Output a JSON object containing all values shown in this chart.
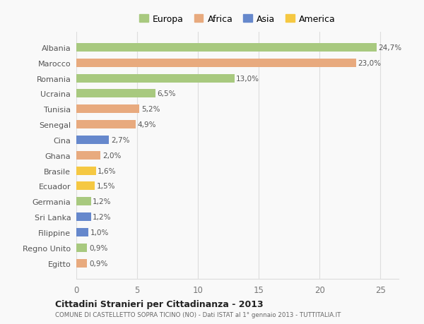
{
  "countries": [
    "Albania",
    "Marocco",
    "Romania",
    "Ucraina",
    "Tunisia",
    "Senegal",
    "Cina",
    "Ghana",
    "Brasile",
    "Ecuador",
    "Germania",
    "Sri Lanka",
    "Filippine",
    "Regno Unito",
    "Egitto"
  ],
  "values": [
    24.7,
    23.0,
    13.0,
    6.5,
    5.2,
    4.9,
    2.7,
    2.0,
    1.6,
    1.5,
    1.2,
    1.2,
    1.0,
    0.9,
    0.9
  ],
  "labels": [
    "24,7%",
    "23,0%",
    "13,0%",
    "6,5%",
    "5,2%",
    "4,9%",
    "2,7%",
    "2,0%",
    "1,6%",
    "1,5%",
    "1,2%",
    "1,2%",
    "1,0%",
    "0,9%",
    "0,9%"
  ],
  "continents": [
    "Europa",
    "Africa",
    "Europa",
    "Europa",
    "Africa",
    "Africa",
    "Asia",
    "Africa",
    "America",
    "America",
    "Europa",
    "Asia",
    "Asia",
    "Europa",
    "Africa"
  ],
  "colors": {
    "Europa": "#a8c97f",
    "Africa": "#e8aa7e",
    "Asia": "#6688cc",
    "America": "#f5c842"
  },
  "title": "Cittadini Stranieri per Cittadinanza - 2013",
  "subtitle": "COMUNE DI CASTELLETTO SOPRA TICINO (NO) - Dati ISTAT al 1° gennaio 2013 - TUTTITALIA.IT",
  "xlim": [
    0,
    26.5
  ],
  "background_color": "#f9f9f9",
  "bar_height": 0.55,
  "grid_color": "#dddddd",
  "legend_order": [
    "Europa",
    "Africa",
    "Asia",
    "America"
  ]
}
